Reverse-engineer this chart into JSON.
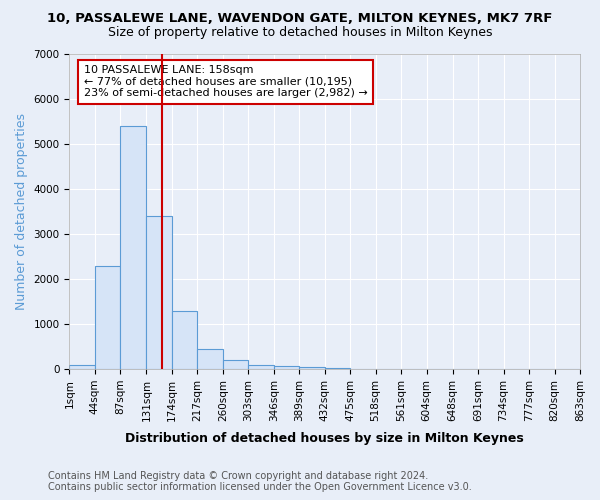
{
  "title": "10, PASSALEWE LANE, WAVENDON GATE, MILTON KEYNES, MK7 7RF",
  "subtitle": "Size of property relative to detached houses in Milton Keynes",
  "xlabel": "Distribution of detached houses by size in Milton Keynes",
  "ylabel": "Number of detached properties",
  "bin_labels": [
    "1sqm",
    "44sqm",
    "87sqm",
    "131sqm",
    "174sqm",
    "217sqm",
    "260sqm",
    "303sqm",
    "346sqm",
    "389sqm",
    "432sqm",
    "475sqm",
    "518sqm",
    "561sqm",
    "604sqm",
    "648sqm",
    "691sqm",
    "734sqm",
    "777sqm",
    "820sqm",
    "863sqm"
  ],
  "bin_edges": [
    1,
    44,
    87,
    131,
    174,
    217,
    260,
    303,
    346,
    389,
    432,
    475,
    518,
    561,
    604,
    648,
    691,
    734,
    777,
    820,
    863
  ],
  "bar_heights": [
    80,
    2280,
    5400,
    3400,
    1300,
    450,
    200,
    100,
    60,
    50,
    30,
    10,
    5,
    3,
    2,
    1,
    1,
    0,
    0,
    0
  ],
  "bar_facecolor": "#d6e4f7",
  "bar_edgecolor": "#5b9bd5",
  "vline_x": 158,
  "vline_color": "#cc0000",
  "annotation_text": "10 PASSALEWE LANE: 158sqm\n← 77% of detached houses are smaller (10,195)\n23% of semi-detached houses are larger (2,982) →",
  "annotation_boxcolor": "white",
  "annotation_edgecolor": "#cc0000",
  "ylim": [
    0,
    7000
  ],
  "yticks": [
    0,
    1000,
    2000,
    3000,
    4000,
    5000,
    6000,
    7000
  ],
  "footer_line1": "Contains HM Land Registry data © Crown copyright and database right 2024.",
  "footer_line2": "Contains public sector information licensed under the Open Government Licence v3.0.",
  "bg_color": "#e8eef8",
  "grid_color": "#ffffff",
  "title_fontsize": 9.5,
  "subtitle_fontsize": 9,
  "axis_label_fontsize": 9,
  "tick_fontsize": 7.5,
  "footer_fontsize": 7,
  "ylabel_color": "#5b9bd5"
}
